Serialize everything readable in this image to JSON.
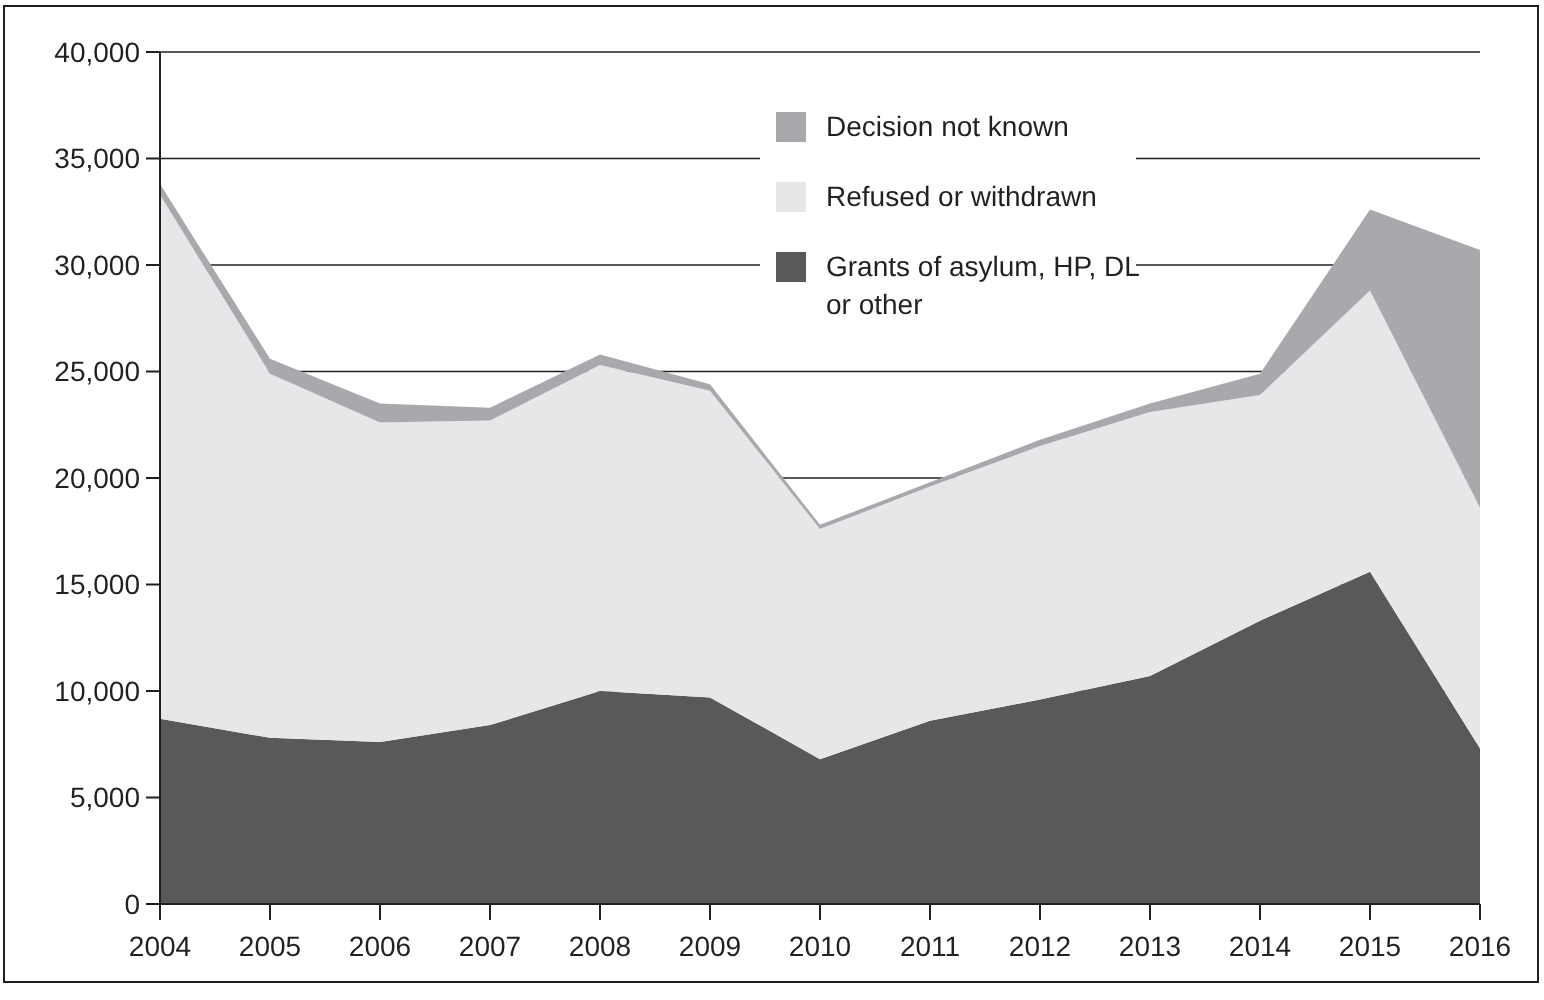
{
  "chart_data": {
    "type": "area",
    "stacked": true,
    "x": [
      2004,
      2005,
      2006,
      2007,
      2008,
      2009,
      2010,
      2011,
      2012,
      2013,
      2014,
      2015,
      2016
    ],
    "xlim": [
      2004,
      2016
    ],
    "xticks": [
      2004,
      2005,
      2006,
      2007,
      2008,
      2009,
      2010,
      2011,
      2012,
      2013,
      2014,
      2015,
      2016
    ],
    "ylim": [
      0,
      40000
    ],
    "yticks": [
      {
        "value": 0,
        "label": "0"
      },
      {
        "value": 5000,
        "label": "5,000"
      },
      {
        "value": 10000,
        "label": "10,000"
      },
      {
        "value": 15000,
        "label": "15,000"
      },
      {
        "value": 20000,
        "label": "20,000"
      },
      {
        "value": 25000,
        "label": "25,000"
      },
      {
        "value": 30000,
        "label": "30,000"
      },
      {
        "value": 35000,
        "label": "35,000"
      },
      {
        "value": 40000,
        "label": "40,000"
      }
    ],
    "grid": "y",
    "legend": "top right",
    "series": [
      {
        "name": "Grants of asylum, HP, DL or other",
        "color": "#58595b",
        "values": [
          8700,
          7800,
          7600,
          8400,
          10000,
          9700,
          6800,
          8600,
          9600,
          10700,
          13300,
          15600,
          7300
        ]
      },
      {
        "name": "Refused or withdrawn",
        "color": "#e6e7e8",
        "values": [
          24600,
          17100,
          15000,
          14300,
          15300,
          14400,
          10800,
          11000,
          11900,
          12400,
          10600,
          13200,
          11300
        ]
      },
      {
        "name": "Decision not known",
        "color": "#a7a9ac",
        "values": [
          500,
          700,
          900,
          600,
          500,
          300,
          200,
          200,
          300,
          400,
          1000,
          3800,
          12100
        ]
      }
    ]
  }
}
